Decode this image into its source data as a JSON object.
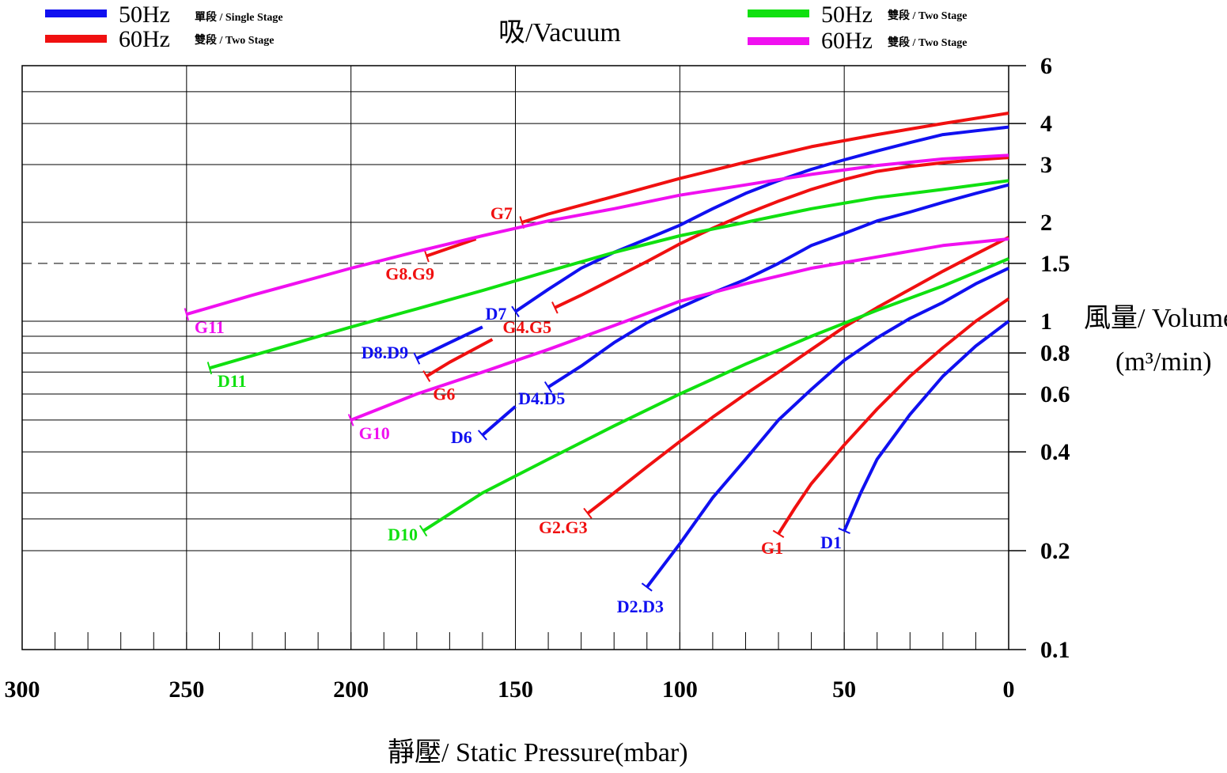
{
  "title": "吸/Vacuum",
  "legend": [
    {
      "freq": "50Hz",
      "stage": "單段 / Single Stage",
      "color": "#1010f0",
      "position": "top-left"
    },
    {
      "freq": "60Hz",
      "stage": "雙段 / Two Stage",
      "color": "#f01010",
      "position": "top-left"
    },
    {
      "freq": "50Hz",
      "stage": "雙段 / Two Stage",
      "color": "#10e010",
      "position": "top-right"
    },
    {
      "freq": "60Hz",
      "stage": "雙段 / Two Stage",
      "color": "#f010f0",
      "position": "top-right"
    }
  ],
  "chart_data": {
    "type": "line",
    "title": "吸/Vacuum",
    "xlabel": "靜壓/ Static Pressure(mbar)",
    "ylabel": "風量/ Volume",
    "ylabel_unit": "(m³/min)",
    "x_ticks": [
      "300",
      "250",
      "200",
      "150",
      "100",
      "50",
      "0"
    ],
    "y_ticks": [
      "6",
      "4",
      "3",
      "2",
      "1.5",
      "1",
      "0.8",
      "0.6",
      "0.4",
      "0.2",
      "0.1"
    ],
    "xlim": [
      300,
      0
    ],
    "ylim": [
      0.1,
      6
    ],
    "y_scale": "log",
    "grid": true,
    "reference_line": {
      "y": 1.5,
      "style": "dashed"
    },
    "series": [
      {
        "name": "D1",
        "color": "#1010f0",
        "points": [
          [
            50,
            0.23
          ],
          [
            45,
            0.3
          ],
          [
            40,
            0.38
          ],
          [
            30,
            0.52
          ],
          [
            20,
            0.68
          ],
          [
            10,
            0.84
          ],
          [
            0,
            1.0
          ]
        ]
      },
      {
        "name": "D2.D3",
        "color": "#1010f0",
        "points": [
          [
            110,
            0.155
          ],
          [
            100,
            0.21
          ],
          [
            90,
            0.29
          ],
          [
            80,
            0.38
          ],
          [
            70,
            0.5
          ],
          [
            60,
            0.62
          ],
          [
            50,
            0.76
          ],
          [
            40,
            0.89
          ],
          [
            30,
            1.02
          ],
          [
            20,
            1.14
          ],
          [
            10,
            1.3
          ],
          [
            0,
            1.45
          ]
        ]
      },
      {
        "name": "D4.D5",
        "color": "#1010f0",
        "points": [
          [
            140,
            0.63
          ],
          [
            130,
            0.73
          ],
          [
            120,
            0.86
          ],
          [
            110,
            0.99
          ],
          [
            100,
            1.1
          ],
          [
            90,
            1.22
          ],
          [
            80,
            1.34
          ],
          [
            70,
            1.5
          ],
          [
            60,
            1.7
          ],
          [
            50,
            1.85
          ],
          [
            40,
            2.02
          ],
          [
            30,
            2.15
          ],
          [
            20,
            2.3
          ],
          [
            10,
            2.45
          ],
          [
            0,
            2.6
          ]
        ]
      },
      {
        "name": "D6",
        "color": "#1010f0",
        "points": [
          [
            160,
            0.45
          ],
          [
            150,
            0.55
          ]
        ]
      },
      {
        "name": "D7",
        "color": "#1010f0",
        "points": [
          [
            150,
            1.07
          ],
          [
            140,
            1.25
          ],
          [
            130,
            1.45
          ],
          [
            120,
            1.62
          ],
          [
            110,
            1.78
          ],
          [
            100,
            1.96
          ],
          [
            90,
            2.2
          ],
          [
            80,
            2.45
          ],
          [
            70,
            2.68
          ],
          [
            60,
            2.9
          ],
          [
            50,
            3.1
          ],
          [
            40,
            3.3
          ],
          [
            30,
            3.5
          ],
          [
            20,
            3.7
          ],
          [
            10,
            3.8
          ],
          [
            0,
            3.9
          ]
        ]
      },
      {
        "name": "D8.D9",
        "color": "#1010f0",
        "points": [
          [
            180,
            0.77
          ],
          [
            170,
            0.86
          ],
          [
            160,
            0.96
          ]
        ]
      },
      {
        "name": "G1",
        "color": "#f01010",
        "points": [
          [
            70,
            0.225
          ],
          [
            65,
            0.27
          ],
          [
            60,
            0.32
          ],
          [
            50,
            0.42
          ],
          [
            40,
            0.54
          ],
          [
            30,
            0.68
          ],
          [
            20,
            0.83
          ],
          [
            10,
            1.0
          ],
          [
            0,
            1.17
          ]
        ]
      },
      {
        "name": "G2.G3",
        "color": "#f01010",
        "points": [
          [
            128,
            0.26
          ],
          [
            120,
            0.3
          ],
          [
            110,
            0.36
          ],
          [
            100,
            0.43
          ],
          [
            90,
            0.51
          ],
          [
            80,
            0.6
          ],
          [
            70,
            0.7
          ],
          [
            60,
            0.82
          ],
          [
            50,
            0.96
          ],
          [
            40,
            1.1
          ],
          [
            30,
            1.25
          ],
          [
            20,
            1.42
          ],
          [
            10,
            1.6
          ],
          [
            0,
            1.8
          ]
        ]
      },
      {
        "name": "G4.G5",
        "color": "#f01010",
        "points": [
          [
            138,
            1.1
          ],
          [
            130,
            1.2
          ],
          [
            120,
            1.35
          ],
          [
            110,
            1.52
          ],
          [
            100,
            1.72
          ],
          [
            90,
            1.92
          ],
          [
            80,
            2.12
          ],
          [
            70,
            2.32
          ],
          [
            60,
            2.52
          ],
          [
            50,
            2.7
          ],
          [
            40,
            2.86
          ],
          [
            30,
            2.96
          ],
          [
            20,
            3.04
          ],
          [
            10,
            3.1
          ],
          [
            0,
            3.15
          ]
        ]
      },
      {
        "name": "G6",
        "color": "#f01010",
        "points": [
          [
            177,
            0.68
          ],
          [
            170,
            0.75
          ],
          [
            157,
            0.88
          ]
        ]
      },
      {
        "name": "G7",
        "color": "#f01010",
        "points": [
          [
            148,
            2.0
          ],
          [
            140,
            2.12
          ],
          [
            120,
            2.4
          ],
          [
            100,
            2.72
          ],
          [
            80,
            3.05
          ],
          [
            60,
            3.4
          ],
          [
            40,
            3.7
          ],
          [
            20,
            4.0
          ],
          [
            0,
            4.3
          ]
        ]
      },
      {
        "name": "G8.G9",
        "color": "#f01010",
        "points": [
          [
            177,
            1.58
          ],
          [
            162,
            1.78
          ]
        ]
      },
      {
        "name": "D10",
        "color": "#10e010",
        "points": [
          [
            178,
            0.23
          ],
          [
            160,
            0.3
          ],
          [
            140,
            0.38
          ],
          [
            120,
            0.48
          ],
          [
            100,
            0.6
          ],
          [
            80,
            0.74
          ],
          [
            60,
            0.9
          ],
          [
            40,
            1.08
          ],
          [
            20,
            1.28
          ],
          [
            0,
            1.55
          ]
        ]
      },
      {
        "name": "D11",
        "color": "#10e010",
        "points": [
          [
            243,
            0.72
          ],
          [
            220,
            0.84
          ],
          [
            200,
            0.96
          ],
          [
            180,
            1.09
          ],
          [
            160,
            1.24
          ],
          [
            140,
            1.42
          ],
          [
            120,
            1.62
          ],
          [
            100,
            1.82
          ],
          [
            80,
            2.0
          ],
          [
            60,
            2.2
          ],
          [
            40,
            2.38
          ],
          [
            20,
            2.52
          ],
          [
            0,
            2.68
          ]
        ]
      },
      {
        "name": "G10",
        "color": "#f010f0",
        "points": [
          [
            200,
            0.5
          ],
          [
            180,
            0.6
          ],
          [
            160,
            0.7
          ],
          [
            140,
            0.82
          ],
          [
            120,
            0.97
          ],
          [
            100,
            1.15
          ],
          [
            80,
            1.3
          ],
          [
            60,
            1.45
          ],
          [
            40,
            1.57
          ],
          [
            20,
            1.7
          ],
          [
            0,
            1.78
          ]
        ]
      },
      {
        "name": "G11",
        "color": "#f010f0",
        "points": [
          [
            250,
            1.05
          ],
          [
            230,
            1.2
          ],
          [
            200,
            1.45
          ],
          [
            180,
            1.63
          ],
          [
            160,
            1.82
          ],
          [
            140,
            2.02
          ],
          [
            120,
            2.2
          ],
          [
            100,
            2.42
          ],
          [
            80,
            2.6
          ],
          [
            60,
            2.8
          ],
          [
            40,
            2.98
          ],
          [
            20,
            3.12
          ],
          [
            0,
            3.2
          ]
        ]
      }
    ]
  }
}
